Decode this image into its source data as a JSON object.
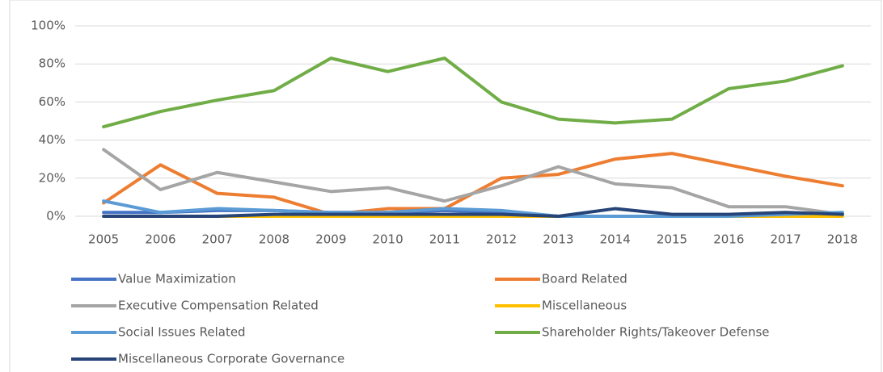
{
  "chart_data": {
    "type": "line",
    "x": [
      "2005",
      "2006",
      "2007",
      "2008",
      "2009",
      "2010",
      "2011",
      "2012",
      "2013",
      "2014",
      "2015",
      "2016",
      "2017",
      "2018"
    ],
    "series": [
      {
        "name": "Value Maximization",
        "color": "#4472c4",
        "values": [
          2,
          2,
          3,
          3,
          2,
          2,
          3,
          2,
          0,
          0,
          0,
          0,
          0,
          1
        ]
      },
      {
        "name": "Board Related",
        "color": "#ed7d31",
        "values": [
          7,
          27,
          12,
          10,
          1,
          4,
          4,
          20,
          22,
          30,
          33,
          27,
          21,
          16
        ]
      },
      {
        "name": "Executive Compensation Related",
        "color": "#a5a5a5",
        "values": [
          35,
          14,
          23,
          18,
          13,
          15,
          8,
          16,
          26,
          17,
          15,
          5,
          5,
          1
        ]
      },
      {
        "name": "Miscellaneous",
        "color": "#ffc000",
        "values": [
          0,
          0,
          0,
          0,
          0,
          0,
          0,
          0,
          0,
          0,
          0,
          0,
          0,
          0
        ]
      },
      {
        "name": "Social Issues Related",
        "color": "#5b9bd5",
        "values": [
          8,
          2,
          4,
          3,
          2,
          2,
          4,
          3,
          0,
          0,
          0,
          0,
          1,
          2
        ]
      },
      {
        "name": "Shareholder Rights/Takeover Defense",
        "color": "#70ad47",
        "values": [
          47,
          55,
          61,
          66,
          83,
          76,
          83,
          60,
          51,
          49,
          51,
          67,
          71,
          79
        ]
      },
      {
        "name": "Miscellaneous Corporate Governance",
        "color": "#264478",
        "values": [
          0,
          0,
          0,
          1,
          1,
          1,
          1,
          1,
          0,
          4,
          1,
          1,
          2,
          1
        ]
      }
    ],
    "ylim": [
      0,
      100
    ],
    "yticks": [
      {
        "value": 0,
        "label": "0%"
      },
      {
        "value": 20,
        "label": "20%"
      },
      {
        "value": 40,
        "label": "40%"
      },
      {
        "value": 60,
        "label": "60%"
      },
      {
        "value": 80,
        "label": "80%"
      },
      {
        "value": 100,
        "label": "100%"
      }
    ],
    "grid": true,
    "legend": "bottom"
  }
}
